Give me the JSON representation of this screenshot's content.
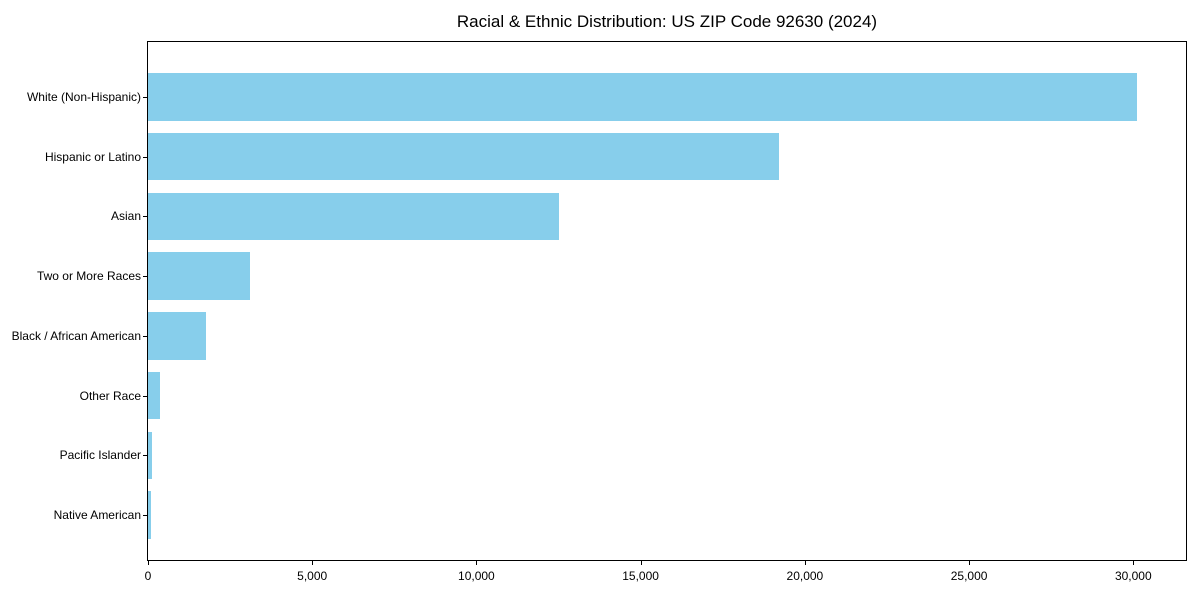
{
  "chart_data": {
    "type": "bar",
    "orientation": "horizontal",
    "title": "Racial & Ethnic Distribution: US ZIP Code 92630 (2024)",
    "categories": [
      "White (Non-Hispanic)",
      "Hispanic or Latino",
      "Asian",
      "Two or More Races",
      "Black / African American",
      "Other Race",
      "Pacific Islander",
      "Native American"
    ],
    "values": [
      30100,
      19200,
      12500,
      3100,
      1750,
      350,
      110,
      80
    ],
    "bar_color": "#87CEEB",
    "xlabel": "",
    "ylabel": "",
    "xlim": [
      0,
      31605
    ],
    "x_tick_values": [
      0,
      5000,
      10000,
      15000,
      20000,
      25000,
      30000
    ],
    "x_tick_labels": [
      "0",
      "5,000",
      "10,000",
      "15,000",
      "20,000",
      "25,000",
      "30,000"
    ],
    "grid": false,
    "frame": "full-box",
    "text_color": "#000000"
  }
}
